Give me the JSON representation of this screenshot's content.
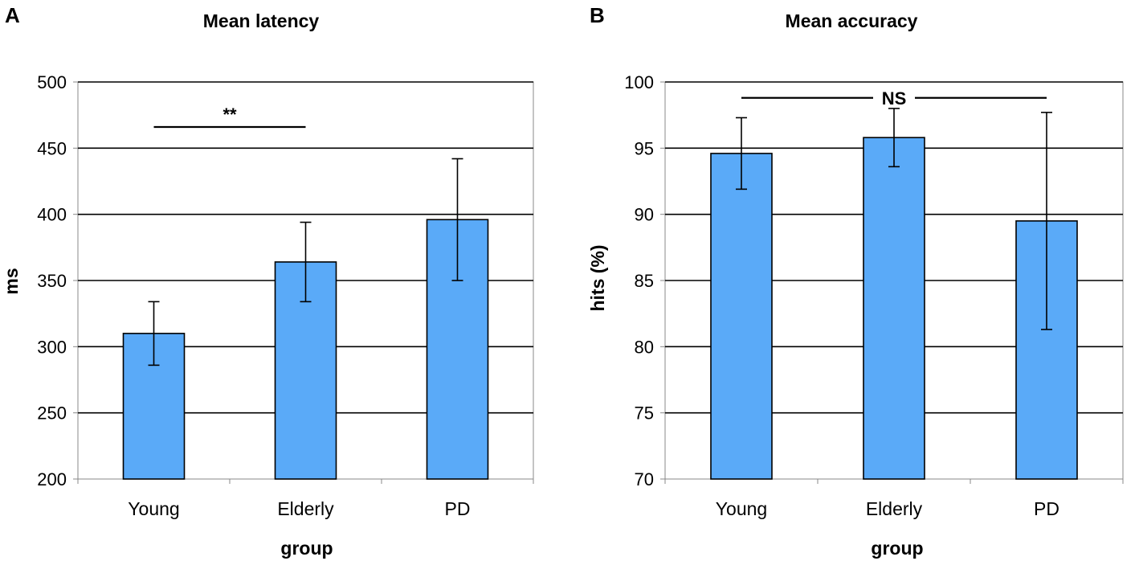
{
  "colors": {
    "bar_fill": "#5aaaf8",
    "bar_stroke": "#000000",
    "grid": "#000000",
    "frame": "#888888"
  },
  "chart_data": [
    {
      "panel": "A",
      "type": "bar",
      "title": "Mean latency",
      "xlabel": "group",
      "ylabel": "ms",
      "categories": [
        "Young",
        "Elderly",
        "PD"
      ],
      "values": [
        310,
        364,
        396
      ],
      "error_upper": [
        334,
        394,
        442
      ],
      "error_lower": [
        286,
        334,
        350
      ],
      "ylim": [
        200,
        500
      ],
      "yticks": [
        200,
        250,
        300,
        350,
        400,
        450,
        500
      ],
      "grid": true,
      "significance": {
        "label": "**",
        "from": "Young",
        "to": "Elderly",
        "y": 466
      }
    },
    {
      "panel": "B",
      "type": "bar",
      "title": "Mean accuracy",
      "xlabel": "group",
      "ylabel": "hits (%)",
      "categories": [
        "Young",
        "Elderly",
        "PD"
      ],
      "values": [
        94.6,
        95.8,
        89.5
      ],
      "error_upper": [
        97.3,
        98.0,
        97.7
      ],
      "error_lower": [
        91.9,
        93.6,
        81.3
      ],
      "ylim": [
        70,
        100
      ],
      "yticks": [
        70,
        75,
        80,
        85,
        90,
        95,
        100
      ],
      "grid": true,
      "significance": {
        "label": "NS",
        "from": "Young",
        "to": "PD",
        "y": 98.8
      }
    }
  ]
}
